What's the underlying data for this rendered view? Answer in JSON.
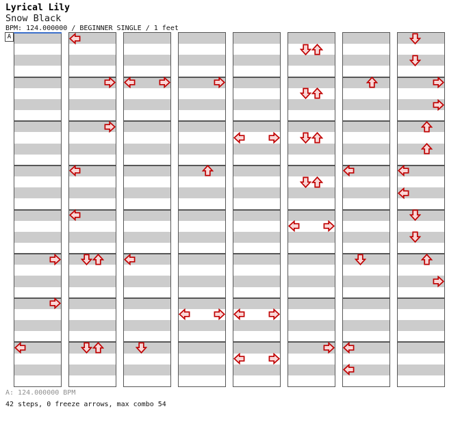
{
  "header": {
    "artist": "Lyrical Lily",
    "song_title": "Snow Black",
    "meta": "BPM: 124.000000 / BEGINNER SINGLE / 1 feet"
  },
  "footer": {
    "bpm_line": "A: 124.000000 BPM",
    "stats_line": "42 steps, 0 freeze arrows, max combo 54"
  },
  "colors": {
    "stripe_gray": "#cccccc",
    "grid_border": "#565656",
    "section_line_blue": "#3b70cc",
    "note_fill": "#f9d6d6",
    "note_outline": "#c00000",
    "footer_bpm_gray": "#8f8f8f"
  },
  "chart": {
    "section_label": "A",
    "columns": 8,
    "rows_per_column": 32,
    "beats_per_measure": 4,
    "lane_order": [
      "left",
      "down",
      "up",
      "right"
    ],
    "notes": [
      {
        "col": 0,
        "row": 20,
        "dir": "right"
      },
      {
        "col": 0,
        "row": 24,
        "dir": "right"
      },
      {
        "col": 0,
        "row": 28,
        "dir": "left"
      },
      {
        "col": 1,
        "row": 0,
        "dir": "left"
      },
      {
        "col": 1,
        "row": 4,
        "dir": "right"
      },
      {
        "col": 1,
        "row": 8,
        "dir": "right"
      },
      {
        "col": 1,
        "row": 12,
        "dir": "left"
      },
      {
        "col": 1,
        "row": 16,
        "dir": "left"
      },
      {
        "col": 1,
        "row": 20,
        "dir": "down"
      },
      {
        "col": 1,
        "row": 20,
        "dir": "up"
      },
      {
        "col": 1,
        "row": 28,
        "dir": "down"
      },
      {
        "col": 1,
        "row": 28,
        "dir": "up"
      },
      {
        "col": 2,
        "row": 4,
        "dir": "left"
      },
      {
        "col": 2,
        "row": 4,
        "dir": "right"
      },
      {
        "col": 2,
        "row": 20,
        "dir": "left"
      },
      {
        "col": 2,
        "row": 28,
        "dir": "down"
      },
      {
        "col": 3,
        "row": 4,
        "dir": "right"
      },
      {
        "col": 3,
        "row": 12,
        "dir": "up"
      },
      {
        "col": 3,
        "row": 25,
        "dir": "left"
      },
      {
        "col": 3,
        "row": 25,
        "dir": "right"
      },
      {
        "col": 4,
        "row": 9,
        "dir": "left"
      },
      {
        "col": 4,
        "row": 9,
        "dir": "right"
      },
      {
        "col": 4,
        "row": 25,
        "dir": "left"
      },
      {
        "col": 4,
        "row": 25,
        "dir": "right"
      },
      {
        "col": 4,
        "row": 29,
        "dir": "left"
      },
      {
        "col": 4,
        "row": 29,
        "dir": "right"
      },
      {
        "col": 5,
        "row": 1,
        "dir": "down"
      },
      {
        "col": 5,
        "row": 1,
        "dir": "up"
      },
      {
        "col": 5,
        "row": 5,
        "dir": "down"
      },
      {
        "col": 5,
        "row": 5,
        "dir": "up"
      },
      {
        "col": 5,
        "row": 9,
        "dir": "down"
      },
      {
        "col": 5,
        "row": 9,
        "dir": "up"
      },
      {
        "col": 5,
        "row": 13,
        "dir": "down"
      },
      {
        "col": 5,
        "row": 13,
        "dir": "up"
      },
      {
        "col": 5,
        "row": 17,
        "dir": "left"
      },
      {
        "col": 5,
        "row": 17,
        "dir": "right"
      },
      {
        "col": 5,
        "row": 28,
        "dir": "right"
      },
      {
        "col": 6,
        "row": 4,
        "dir": "up"
      },
      {
        "col": 6,
        "row": 12,
        "dir": "left"
      },
      {
        "col": 6,
        "row": 20,
        "dir": "down"
      },
      {
        "col": 6,
        "row": 28,
        "dir": "left"
      },
      {
        "col": 6,
        "row": 30,
        "dir": "left"
      },
      {
        "col": 7,
        "row": 0,
        "dir": "down"
      },
      {
        "col": 7,
        "row": 2,
        "dir": "down"
      },
      {
        "col": 7,
        "row": 4,
        "dir": "right"
      },
      {
        "col": 7,
        "row": 6,
        "dir": "right"
      },
      {
        "col": 7,
        "row": 8,
        "dir": "up"
      },
      {
        "col": 7,
        "row": 10,
        "dir": "up"
      },
      {
        "col": 7,
        "row": 12,
        "dir": "left"
      },
      {
        "col": 7,
        "row": 14,
        "dir": "left"
      },
      {
        "col": 7,
        "row": 16,
        "dir": "down"
      },
      {
        "col": 7,
        "row": 18,
        "dir": "down"
      },
      {
        "col": 7,
        "row": 20,
        "dir": "up"
      },
      {
        "col": 7,
        "row": 22,
        "dir": "right"
      }
    ]
  }
}
